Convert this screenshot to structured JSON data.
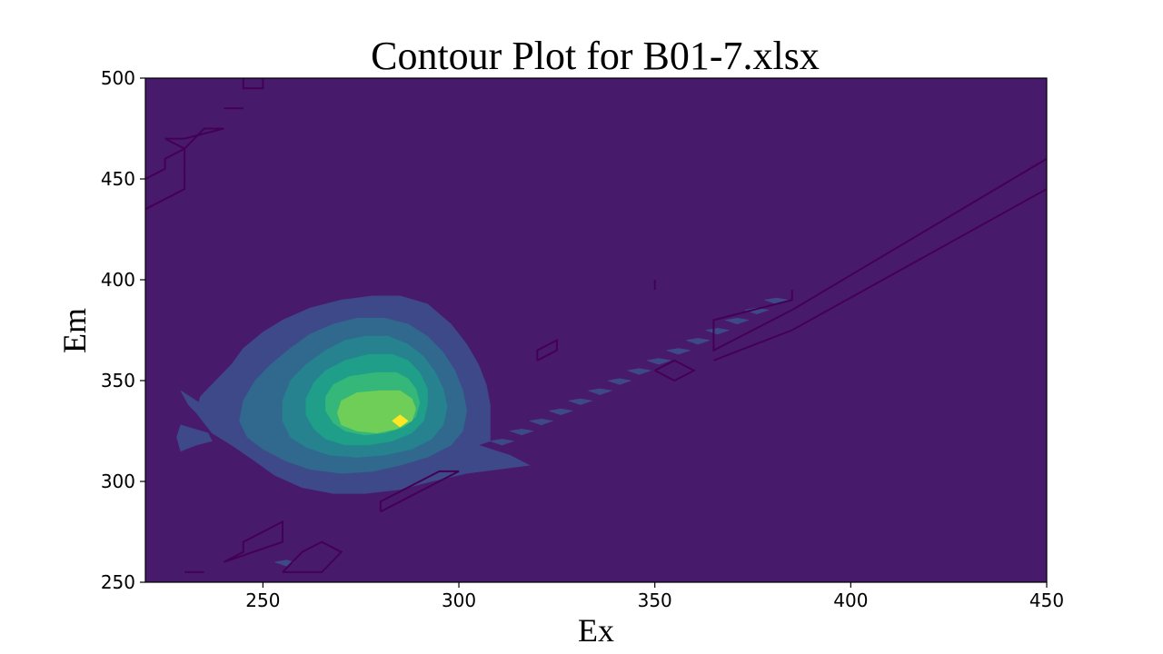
{
  "chart_data": {
    "type": "contour",
    "title": "Contour Plot for B01-7.xlsx",
    "xlabel": "Ex",
    "ylabel": "Em",
    "xlim": [
      220,
      450
    ],
    "ylim": [
      250,
      500
    ],
    "x_ticks": [
      250,
      300,
      350,
      400,
      450
    ],
    "y_ticks": [
      250,
      300,
      350,
      400,
      450,
      500
    ],
    "colormap": "viridis",
    "colors": {
      "background": "#481a6c",
      "levels": [
        "#481a6c",
        "#3e4989",
        "#31688e",
        "#26828e",
        "#1f9e89",
        "#35b779",
        "#6ece58",
        "#b5de2b",
        "#fde725"
      ],
      "outline": "#440154"
    },
    "peak": {
      "ex": 285,
      "em": 330
    },
    "level_regions": [
      {
        "level": 1,
        "rings": [
          [
            [
              270,
              390
            ],
            [
              278,
              392
            ],
            [
              285,
              392
            ],
            [
              292,
              388
            ],
            [
              298,
              378
            ],
            [
              302,
              368
            ],
            [
              305,
              358
            ],
            [
              307,
              348
            ],
            [
              308,
              338
            ],
            [
              308,
              320
            ],
            [
              305,
              318
            ],
            [
              313,
              313
            ],
            [
              318,
              308
            ],
            [
              310,
              306
            ],
            [
              302,
              304
            ],
            [
              293,
              300
            ],
            [
              285,
              296
            ],
            [
              276,
              294
            ],
            [
              268,
              294
            ],
            [
              260,
              297
            ],
            [
              253,
              303
            ],
            [
              248,
              310
            ],
            [
              242,
              318
            ],
            [
              237,
              324
            ],
            [
              233,
              334
            ],
            [
              234,
              342
            ],
            [
              238,
              350
            ],
            [
              242,
              358
            ],
            [
              245,
              366
            ],
            [
              250,
              374
            ],
            [
              255,
              380
            ],
            [
              262,
              386
            ]
          ],
          [
            [
              229,
              345
            ],
            [
              233,
              340
            ],
            [
              237,
              335
            ],
            [
              233,
              334
            ],
            [
              231,
              338
            ]
          ],
          [
            [
              229,
              328
            ],
            [
              236,
              324
            ],
            [
              237,
              320
            ],
            [
              233,
              318
            ],
            [
              229,
              315
            ],
            [
              228,
              322
            ]
          ]
        ]
      },
      {
        "level": 2,
        "rings": [
          [
            [
              274,
              381
            ],
            [
              281,
              381
            ],
            [
              287,
              378
            ],
            [
              292,
              372
            ],
            [
              296,
              364
            ],
            [
              299,
              355
            ],
            [
              301,
              345
            ],
            [
              302,
              335
            ],
            [
              301,
              325
            ],
            [
              298,
              318
            ],
            [
              292,
              312
            ],
            [
              285,
              308
            ],
            [
              278,
              305
            ],
            [
              270,
              304
            ],
            [
              262,
              306
            ],
            [
              256,
              310
            ],
            [
              250,
              316
            ],
            [
              246,
              322
            ],
            [
              244,
              330
            ],
            [
              245,
              340
            ],
            [
              248,
              350
            ],
            [
              252,
              358
            ],
            [
              257,
              366
            ],
            [
              262,
              373
            ],
            [
              268,
              378
            ]
          ]
        ]
      },
      {
        "level": 3,
        "rings": [
          [
            [
              276,
              372
            ],
            [
              282,
              372
            ],
            [
              287,
              368
            ],
            [
              291,
              362
            ],
            [
              294,
              354
            ],
            [
              296,
              346
            ],
            [
              297,
              337
            ],
            [
              296,
              328
            ],
            [
              293,
              321
            ],
            [
              288,
              316
            ],
            [
              281,
              313
            ],
            [
              274,
              312
            ],
            [
              267,
              313
            ],
            [
              261,
              317
            ],
            [
              257,
              322
            ],
            [
              255,
              330
            ],
            [
              255,
              340
            ],
            [
              257,
              350
            ],
            [
              261,
              358
            ],
            [
              266,
              365
            ],
            [
              271,
              370
            ]
          ]
        ]
      },
      {
        "level": 4,
        "rings": [
          [
            [
              277,
              363
            ],
            [
              283,
              363
            ],
            [
              287,
              360
            ],
            [
              290,
              354
            ],
            [
              292,
              346
            ],
            [
              292,
              338
            ],
            [
              291,
              330
            ],
            [
              288,
              324
            ],
            [
              283,
              320
            ],
            [
              277,
              318
            ],
            [
              271,
              318
            ],
            [
              266,
              321
            ],
            [
              263,
              326
            ],
            [
              261,
              333
            ],
            [
              261,
              341
            ],
            [
              263,
              349
            ],
            [
              266,
              355
            ],
            [
              271,
              360
            ]
          ]
        ]
      },
      {
        "level": 5,
        "rings": [
          [
            [
              279,
              354
            ],
            [
              284,
              354
            ],
            [
              287,
              351
            ],
            [
              289,
              346
            ],
            [
              290,
              339
            ],
            [
              289,
              332
            ],
            [
              286,
              327
            ],
            [
              281,
              324
            ],
            [
              276,
              323
            ],
            [
              271,
              325
            ],
            [
              268,
              329
            ],
            [
              266,
              335
            ],
            [
              266,
              342
            ],
            [
              268,
              348
            ],
            [
              272,
              352
            ]
          ]
        ]
      },
      {
        "level": 6,
        "rings": [
          [
            [
              280,
              345
            ],
            [
              285,
              345
            ],
            [
              288,
              341
            ],
            [
              289,
              336
            ],
            [
              288,
              330
            ],
            [
              284,
              326
            ],
            [
              279,
              324
            ],
            [
              274,
              325
            ],
            [
              270,
              328
            ],
            [
              269,
              334
            ],
            [
              270,
              340
            ],
            [
              274,
              344
            ]
          ]
        ]
      },
      {
        "level": 8,
        "rings": [
          [
            [
              285,
              333
            ],
            [
              287,
              330
            ],
            [
              285,
              327
            ],
            [
              283,
              330
            ]
          ]
        ]
      },
      {
        "level": 1,
        "rings": [
          [
            [
              308,
              320
            ],
            [
              311,
              321
            ],
            [
              314,
              320
            ],
            [
              311,
              318
            ]
          ],
          [
            [
              313,
              325
            ],
            [
              316,
              326
            ],
            [
              319,
              325
            ],
            [
              316,
              323
            ]
          ],
          [
            [
              318,
              330
            ],
            [
              321,
              331
            ],
            [
              324,
              330
            ],
            [
              321,
              328
            ]
          ],
          [
            [
              323,
              335
            ],
            [
              326,
              336
            ],
            [
              329,
              335
            ],
            [
              326,
              333
            ]
          ],
          [
            [
              328,
              340
            ],
            [
              331,
              341
            ],
            [
              334,
              340
            ],
            [
              331,
              338
            ]
          ],
          [
            [
              333,
              345
            ],
            [
              336,
              346
            ],
            [
              339,
              345
            ],
            [
              336,
              343
            ]
          ],
          [
            [
              338,
              350
            ],
            [
              341,
              351
            ],
            [
              344,
              350
            ],
            [
              341,
              348
            ]
          ],
          [
            [
              343,
              355
            ],
            [
              346,
              356
            ],
            [
              349,
              355
            ],
            [
              346,
              353
            ]
          ],
          [
            [
              348,
              360
            ],
            [
              351,
              361
            ],
            [
              354,
              360
            ],
            [
              351,
              358
            ]
          ],
          [
            [
              353,
              365
            ],
            [
              356,
              366
            ],
            [
              359,
              365
            ],
            [
              356,
              363
            ]
          ],
          [
            [
              358,
              370
            ],
            [
              361,
              371
            ],
            [
              364,
              370
            ],
            [
              361,
              368
            ]
          ],
          [
            [
              363,
              375
            ],
            [
              366,
              376
            ],
            [
              369,
              375
            ],
            [
              366,
              373
            ]
          ],
          [
            [
              368,
              380
            ],
            [
              371,
              381
            ],
            [
              374,
              380
            ],
            [
              371,
              378
            ]
          ],
          [
            [
              373,
              385
            ],
            [
              376,
              386
            ],
            [
              379,
              385
            ],
            [
              376,
              383
            ]
          ],
          [
            [
              378,
              390
            ],
            [
              381,
              391
            ],
            [
              384,
              390
            ],
            [
              381,
              388
            ]
          ],
          [
            [
              253,
              260
            ],
            [
              256,
              261
            ],
            [
              258,
              260
            ],
            [
              256,
              258
            ]
          ]
        ]
      }
    ],
    "outline_paths": [
      [
        [
          245,
          500
        ],
        [
          245,
          495
        ],
        [
          250,
          495
        ],
        [
          250,
          500
        ]
      ],
      [
        [
          240,
          485
        ],
        [
          245,
          485
        ]
      ],
      [
        [
          225,
          470
        ],
        [
          230,
          465
        ],
        [
          235,
          475
        ],
        [
          240,
          475
        ],
        [
          230,
          470
        ],
        [
          225,
          470
        ]
      ],
      [
        [
          220,
          435
        ],
        [
          225,
          440
        ],
        [
          230,
          445
        ],
        [
          230,
          465
        ],
        [
          225,
          460
        ],
        [
          225,
          455
        ],
        [
          220,
          450
        ]
      ],
      [
        [
          385,
          395
        ],
        [
          385,
          390
        ],
        [
          365,
          380
        ],
        [
          365,
          365
        ],
        [
          385,
          385
        ],
        [
          450,
          460
        ]
      ],
      [
        [
          365,
          360
        ],
        [
          385,
          375
        ],
        [
          450,
          445
        ]
      ],
      [
        [
          350,
          400
        ],
        [
          350,
          395
        ]
      ],
      [
        [
          320,
          360
        ],
        [
          325,
          365
        ],
        [
          325,
          370
        ],
        [
          320,
          365
        ],
        [
          320,
          360
        ]
      ],
      [
        [
          350,
          355
        ],
        [
          355,
          360
        ],
        [
          360,
          355
        ],
        [
          355,
          350
        ],
        [
          350,
          355
        ]
      ],
      [
        [
          280,
          285
        ],
        [
          300,
          305
        ],
        [
          295,
          305
        ],
        [
          280,
          290
        ],
        [
          280,
          285
        ]
      ],
      [
        [
          240,
          260
        ],
        [
          255,
          270
        ],
        [
          255,
          280
        ],
        [
          245,
          270
        ],
        [
          245,
          265
        ],
        [
          240,
          260
        ]
      ],
      [
        [
          255,
          255
        ],
        [
          265,
          255
        ],
        [
          270,
          265
        ],
        [
          265,
          270
        ],
        [
          260,
          265
        ],
        [
          255,
          255
        ]
      ],
      [
        [
          230,
          255
        ],
        [
          235,
          255
        ]
      ]
    ]
  }
}
